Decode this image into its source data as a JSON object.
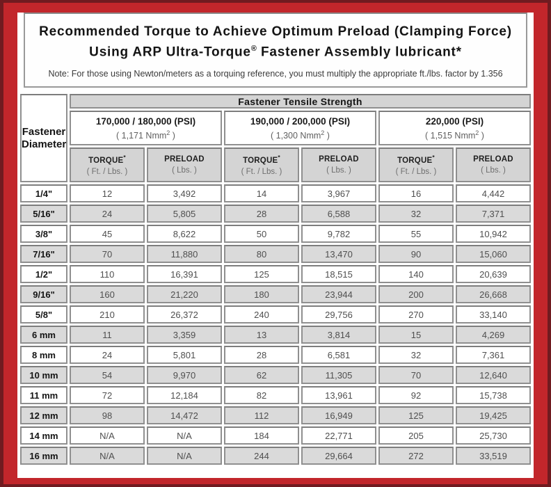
{
  "title": {
    "line1": "Recommended Torque to Achieve Optimum Preload (Clamping Force)",
    "line2_before_sup": "Using ARP Ultra-Torque",
    "line2_sup": "®",
    "line2_after_sup": " Fastener Assembly lubricant*",
    "note": "Note: For those using Newton/meters as a torquing reference, you must multiply the appropriate ft./lbs. factor by 1.356"
  },
  "table": {
    "tensile_strength_header": "Fastener Tensile Strength",
    "diameter_header": {
      "line1": "Fastener",
      "line2": "Diameter"
    },
    "strength_groups": [
      {
        "psi": "170,000 / 180,000 (PSI)",
        "nmm_before_sup": "( 1,171 Nmm",
        "nmm_sup": "2",
        "nmm_after_sup": " )"
      },
      {
        "psi": "190,000 / 200,000 (PSI)",
        "nmm_before_sup": "( 1,300 Nmm",
        "nmm_sup": "2",
        "nmm_after_sup": " )"
      },
      {
        "psi": "220,000 (PSI)",
        "nmm_before_sup": "( 1,515 Nmm",
        "nmm_sup": "2",
        "nmm_after_sup": " )"
      }
    ],
    "unit_headers": {
      "torque_label": "TORQUE",
      "torque_sup": "*",
      "torque_unit": "( Ft. / Lbs. )",
      "preload_label": "PRELOAD",
      "preload_unit": "( Lbs. )"
    },
    "rows": [
      {
        "diameter": "1/4\"",
        "values": [
          "12",
          "3,492",
          "14",
          "3,967",
          "16",
          "4,442"
        ]
      },
      {
        "diameter": "5/16\"",
        "values": [
          "24",
          "5,805",
          "28",
          "6,588",
          "32",
          "7,371"
        ]
      },
      {
        "diameter": "3/8\"",
        "values": [
          "45",
          "8,622",
          "50",
          "9,782",
          "55",
          "10,942"
        ]
      },
      {
        "diameter": "7/16\"",
        "values": [
          "70",
          "11,880",
          "80",
          "13,470",
          "90",
          "15,060"
        ]
      },
      {
        "diameter": "1/2\"",
        "values": [
          "110",
          "16,391",
          "125",
          "18,515",
          "140",
          "20,639"
        ]
      },
      {
        "diameter": "9/16\"",
        "values": [
          "160",
          "21,220",
          "180",
          "23,944",
          "200",
          "26,668"
        ]
      },
      {
        "diameter": "5/8\"",
        "values": [
          "210",
          "26,372",
          "240",
          "29,756",
          "270",
          "33,140"
        ]
      },
      {
        "diameter": "6 mm",
        "values": [
          "11",
          "3,359",
          "13",
          "3,814",
          "15",
          "4,269"
        ]
      },
      {
        "diameter": "8 mm",
        "values": [
          "24",
          "5,801",
          "28",
          "6,581",
          "32",
          "7,361"
        ]
      },
      {
        "diameter": "10 mm",
        "values": [
          "54",
          "9,970",
          "62",
          "11,305",
          "70",
          "12,640"
        ]
      },
      {
        "diameter": "11 mm",
        "values": [
          "72",
          "12,184",
          "82",
          "13,961",
          "92",
          "15,738"
        ]
      },
      {
        "diameter": "12 mm",
        "values": [
          "98",
          "14,472",
          "112",
          "16,949",
          "125",
          "19,425"
        ]
      },
      {
        "diameter": "14 mm",
        "values": [
          "N/A",
          "N/A",
          "184",
          "22,771",
          "205",
          "25,730"
        ]
      },
      {
        "diameter": "16 mm",
        "values": [
          "N/A",
          "N/A",
          "244",
          "29,664",
          "272",
          "33,519"
        ]
      }
    ]
  },
  "colors": {
    "outer_frame": "#701b20",
    "red_frame": "#c2262b",
    "cell_border": "#8f8f8f",
    "header_gray": "#d4d4d4",
    "alt_row_gray": "#dadada"
  }
}
